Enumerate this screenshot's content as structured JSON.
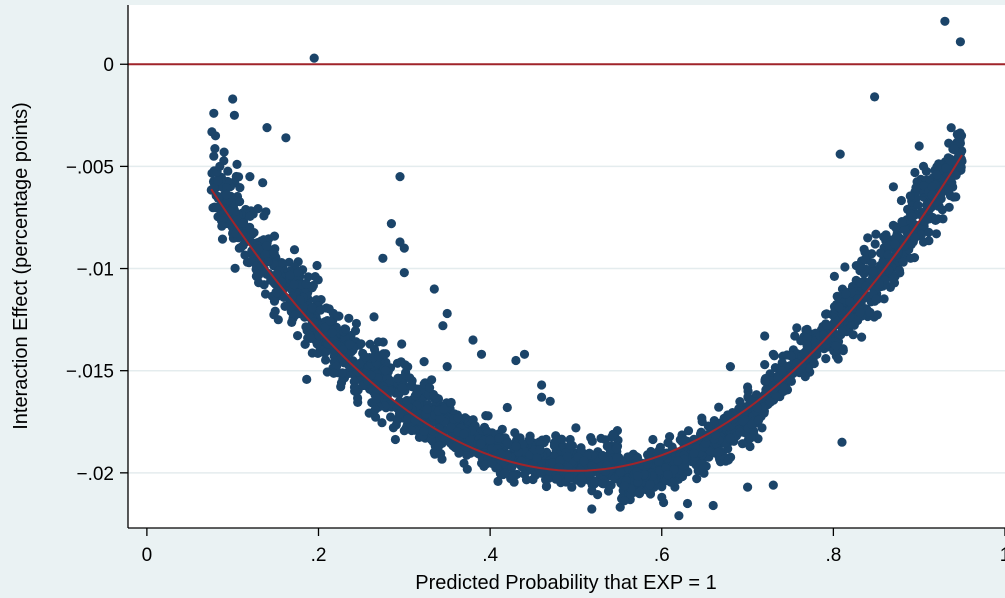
{
  "chart_data": {
    "type": "scatter",
    "title": "",
    "xlabel": "Predicted Probability that EXP = 1",
    "ylabel": "Interaction Effect (percentage points)",
    "xlim": [
      -0.022,
      1.0
    ],
    "ylim": [
      -0.0227,
      0.0029
    ],
    "x_ticks": [
      0,
      0.2,
      0.4,
      0.6,
      0.8,
      1
    ],
    "x_tick_labels": [
      "0",
      ".2",
      ".4",
      ".6",
      ".8",
      "1"
    ],
    "y_ticks": [
      0,
      -0.005,
      -0.01,
      -0.015,
      -0.02
    ],
    "y_tick_labels": [
      "0",
      "−.005",
      "−.01",
      "−.015",
      "−.02"
    ],
    "grid": true,
    "legend": "none",
    "reference_line": {
      "y": 0,
      "color": "#a0242a"
    },
    "colors": {
      "points": "#1b4469",
      "fit": "#a0242a",
      "plot_bg": "#ffffff",
      "page_bg": "#eaf2f3",
      "grid": "#e4ecee"
    },
    "series": [
      {
        "kind": "points",
        "points": [
          [
            0.195,
            0.0003
          ],
          [
            0.93,
            0.0021
          ],
          [
            0.948,
            0.0011
          ],
          [
            0.848,
            -0.0016
          ],
          [
            0.1,
            -0.0017
          ],
          [
            0.078,
            -0.0024
          ],
          [
            0.102,
            -0.0025
          ],
          [
            0.14,
            -0.0031
          ],
          [
            0.162,
            -0.0036
          ],
          [
            0.08,
            -0.0035
          ],
          [
            0.09,
            -0.0043
          ],
          [
            0.078,
            -0.0045
          ],
          [
            0.085,
            -0.005
          ],
          [
            0.105,
            -0.0049
          ],
          [
            0.12,
            -0.0055
          ],
          [
            0.135,
            -0.0058
          ],
          [
            0.295,
            -0.0055
          ],
          [
            0.808,
            -0.0044
          ],
          [
            0.9,
            -0.004
          ],
          [
            0.905,
            -0.005
          ],
          [
            0.895,
            -0.0053
          ],
          [
            0.87,
            -0.006
          ],
          [
            0.915,
            -0.006
          ],
          [
            0.915,
            -0.0064
          ],
          [
            0.285,
            -0.0078
          ],
          [
            0.3,
            -0.009
          ],
          [
            0.335,
            -0.011
          ],
          [
            0.275,
            -0.0095
          ],
          [
            0.295,
            -0.0087
          ],
          [
            0.3,
            -0.0102
          ],
          [
            0.35,
            -0.0122
          ],
          [
            0.345,
            -0.0128
          ],
          [
            0.38,
            -0.0135
          ],
          [
            0.35,
            -0.0148
          ],
          [
            0.39,
            -0.0142
          ],
          [
            0.44,
            -0.0142
          ],
          [
            0.43,
            -0.0145
          ],
          [
            0.46,
            -0.0157
          ],
          [
            0.46,
            -0.0163
          ],
          [
            0.47,
            -0.0165
          ],
          [
            0.42,
            -0.0168
          ],
          [
            0.395,
            -0.0172
          ],
          [
            0.5,
            -0.0178
          ],
          [
            0.49,
            -0.0192
          ],
          [
            0.43,
            -0.0187
          ],
          [
            0.4,
            -0.0184
          ],
          [
            0.63,
            -0.0215
          ],
          [
            0.62,
            -0.0221
          ],
          [
            0.66,
            -0.0216
          ],
          [
            0.6,
            -0.0212
          ],
          [
            0.7,
            -0.0207
          ],
          [
            0.73,
            -0.0206
          ],
          [
            0.81,
            -0.0185
          ],
          [
            0.68,
            -0.0148
          ],
          [
            0.72,
            -0.0133
          ],
          [
            0.755,
            -0.0133
          ],
          [
            0.7,
            -0.0158
          ],
          [
            0.72,
            -0.0147
          ],
          [
            0.73,
            -0.0142
          ],
          [
            0.705,
            -0.0165
          ],
          [
            0.74,
            -0.015
          ],
          [
            0.78,
            -0.0138
          ],
          [
            0.85,
            -0.0115
          ],
          [
            0.87,
            -0.0105
          ],
          [
            0.84,
            -0.0085
          ],
          [
            0.88,
            -0.0077
          ],
          [
            0.89,
            -0.0095
          ],
          [
            0.905,
            -0.0087
          ],
          [
            0.92,
            -0.0083
          ],
          [
            0.935,
            -0.007
          ],
          [
            0.94,
            -0.0065
          ],
          [
            0.895,
            -0.0085
          ]
        ]
      },
      {
        "kind": "fit",
        "name": "",
        "x_range": [
          0.075,
          0.95
        ],
        "coefficients": {
          "vertex_x": 0.5,
          "vertex_y": -0.0199,
          "curvature": 0.0763
        }
      }
    ]
  }
}
